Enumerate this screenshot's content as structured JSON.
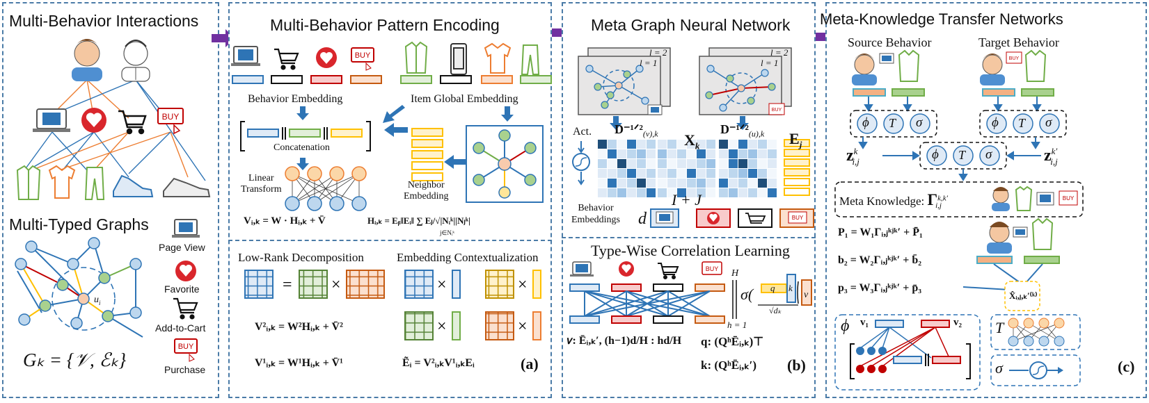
{
  "panels": {
    "p1": {
      "title": "Multi-Behavior Interactions",
      "graph_title": "Multi-Typed Graphs",
      "legend": [
        "Page View",
        "Favorite",
        "Add-to-Cart",
        "Purchase"
      ],
      "node_label": "u",
      "node_sub": "i",
      "formula": "Gₖ = {𝒱, ℰₖ}"
    },
    "p2": {
      "title": "Multi-Behavior Pattern Encoding",
      "behavior_embedding": "Behavior Embedding",
      "item_global_embedding": "Item Global Embedding",
      "concatenation": "Concatenation",
      "linear_transform": "Linear\nTransform",
      "neighbor_embedding": "Neighbor\nEmbedding",
      "eq1": "Vᵢ,ₖ = W · Hᵢ,ₖ + V̄",
      "eq2": "Hᵢ,ₖ = Eᵦ‖Eᵢ‖ ∑ Eⱼ/√|Nᵢᵏ||Nⱼᵏ|",
      "eq2_sub": "j∈Nᵢᵏ",
      "low_rank": "Low-Rank Decomposition",
      "contextualization": "Embedding Contextualization",
      "eq3": "V²ᵢ,ₖ = W²Hᵢ,ₖ + V̄²",
      "eq4": "V¹ᵢ,ₖ = W¹Hᵢ,ₖ + V̄¹",
      "eq5": "Ẽᵢ = V²ᵢ,ₖV¹ᵢ,ₖEᵢ",
      "label": "(a)",
      "buy": "BUY"
    },
    "p3": {
      "title": "Meta Graph Neural Network",
      "l2": "l = 2",
      "l1": "l = 1",
      "act": "Act.",
      "d_v": "D⁻¹ᐟ²",
      "d_v_sub": "(v),k",
      "x_k": "X",
      "x_sub": "k",
      "d_u": "D⁻¹ᐟ²",
      "d_u_sub": "(u),k",
      "e_j": "E",
      "e_sub": "j",
      "i_plus_j": "I + J",
      "d": "d",
      "behavior_embeddings": "Behavior\nEmbeddings",
      "type_wise": "Type-Wise Correlation Learning",
      "H": "H",
      "h1": "h = 1",
      "sigma": "σ(",
      "q": "q",
      "k": "k",
      "v": "v",
      "sqrt_dk": "√dₖ",
      "v_eq": "𝑣: Ēᵢ,ₖ′, (h−1)d/H : hd/H",
      "q_eq": "q:  (QʰĒᵢ,ₖ)⊤",
      "k_eq": "k:  (QʰĒᵢ,ₖ′)",
      "label": "(b)"
    },
    "p4": {
      "title": "Meta-Knowledge Transfer Networks",
      "source": "Source Behavior",
      "target": "Target Behavior",
      "phi": "ϕ",
      "T": "T",
      "sigma": "σ",
      "z1": "z",
      "z1_sup": "k",
      "z1_sub": "i,j",
      "z2": "z",
      "z2_sup": "k′",
      "z2_sub": "i,j",
      "meta_knowledge": "Meta Knowledge: ",
      "gamma": "Γ",
      "gamma_sup": "k,k′",
      "gamma_sub": "i,j",
      "p1": "P₁ = W₁Γᵢ,ⱼᵏʲᵏ′ + P̄₁",
      "b2": "b₂ = W₂Γᵢ,ⱼᵏʲᵏ′ + b̄₂",
      "p3": "p₃ = W₃Γᵢ,ⱼᵏʲᵏ′ + p̄₃",
      "xhat": "X̂ᵢ,ⱼ,ₖ′⁽ᵏ⁾",
      "v1": "v₁",
      "v2": "v₂",
      "label": "(c)"
    }
  },
  "colors": {
    "border": "#4a7ba7",
    "arrow": "#7030a0",
    "blue": "#2e74b5",
    "red": "#c00000",
    "green": "#70ad47",
    "orange": "#ed7d31",
    "yellow": "#ffc000",
    "nodeblue": "#bdd7ee",
    "nodegreen": "#a9d18e",
    "nodepink": "#f8cbad"
  }
}
